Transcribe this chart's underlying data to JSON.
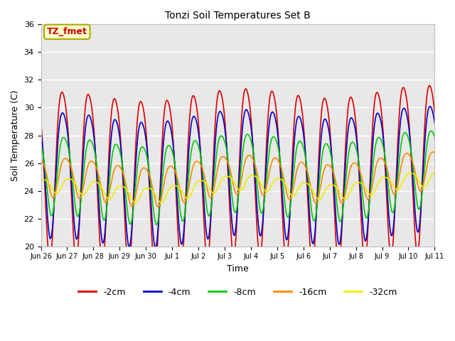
{
  "title": "Tonzi Soil Temperatures Set B",
  "xlabel": "Time",
  "ylabel": "Soil Temperature (C)",
  "ylim": [
    20,
    36
  ],
  "annotation": "TZ_fmet",
  "annotation_color": "#cc0000",
  "annotation_bg": "#ffffcc",
  "annotation_border": "#aaaa00",
  "bg_color": "#e8e8e8",
  "series": [
    {
      "label": "-2cm",
      "color": "#dd0000",
      "lw": 1.2
    },
    {
      "label": "-4cm",
      "color": "#0000cc",
      "lw": 1.2
    },
    {
      "label": "-8cm",
      "color": "#00cc00",
      "lw": 1.2
    },
    {
      "label": "-16cm",
      "color": "#ff8800",
      "lw": 1.2
    },
    {
      "label": "-32cm",
      "color": "#eeee00",
      "lw": 1.2
    }
  ],
  "xtick_labels": [
    "Jun 26",
    "Jun 27",
    "Jun 28",
    "Jun 29",
    "Jun 30",
    "Jul 1",
    "Jul 2",
    "Jul 3",
    "Jul 4",
    "Jul 5",
    "Jul 6",
    "Jul 7",
    "Jul 8",
    "Jul 9",
    "Jul 10",
    "Jul 11"
  ],
  "n_ticks": 16,
  "days_total": 15,
  "grid_color": "#ffffff",
  "font_size_ticks": 7,
  "font_size_title": 10,
  "font_size_label": 9,
  "font_size_legend": 9,
  "amp_2cm": 6.0,
  "amp_4cm": 4.5,
  "amp_8cm": 2.8,
  "amp_16cm": 1.4,
  "amp_32cm": 0.55,
  "base_mean": 25.5,
  "base_trend": 0.5
}
